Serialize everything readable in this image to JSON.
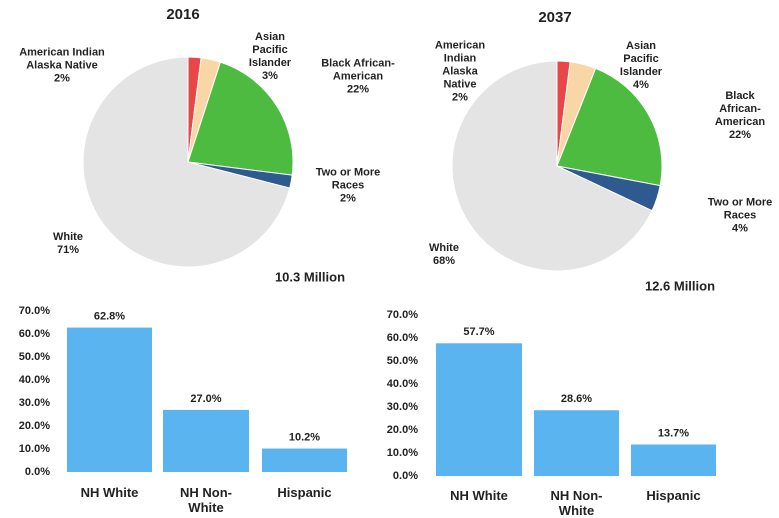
{
  "chart_data": [
    {
      "type": "pie",
      "title": "2016",
      "subtitle": "10.3 Million",
      "categories": [
        "American Indian Alaska Native",
        "Asian Pacific Islander",
        "Black African-American",
        "Two or More Races",
        "White"
      ],
      "values": [
        2,
        3,
        22,
        2,
        71
      ],
      "value_labels": [
        "2%",
        "3%",
        "22%",
        "2%",
        "71%"
      ],
      "colors": [
        "#e8474a",
        "#f9d6a6",
        "#4cbb3f",
        "#2e5a8f",
        "#e4e4e4"
      ]
    },
    {
      "type": "pie",
      "title": "2037",
      "subtitle": "12.6 Million",
      "categories": [
        "American Indian Alaska Native",
        "Asian Pacific Islander",
        "Black African-American",
        "Two or More Races",
        "White"
      ],
      "values": [
        2,
        4,
        22,
        4,
        68
      ],
      "value_labels": [
        "2%",
        "4%",
        "22%",
        "4%",
        "68%"
      ],
      "colors": [
        "#e8474a",
        "#f9d6a6",
        "#4cbb3f",
        "#2e5a8f",
        "#e4e4e4"
      ]
    },
    {
      "type": "bar",
      "categories": [
        "NH White",
        "NH Non-White",
        "Hispanic"
      ],
      "values": [
        62.8,
        27.0,
        10.2
      ],
      "value_labels": [
        "62.8%",
        "27.0%",
        "10.2%"
      ],
      "color": "#5ab4f0",
      "ylim": [
        0,
        70
      ],
      "yticks": [
        {
          "value": 0,
          "label": "0.0%"
        },
        {
          "value": 10,
          "label": "10.0%"
        },
        {
          "value": 20,
          "label": "20.0%"
        },
        {
          "value": 30,
          "label": "30.0%"
        },
        {
          "value": 40,
          "label": "40.0%"
        },
        {
          "value": 50,
          "label": "50.0%"
        },
        {
          "value": 60,
          "label": "60.0%"
        },
        {
          "value": 70,
          "label": "70.0%"
        }
      ]
    },
    {
      "type": "bar",
      "categories": [
        "NH White",
        "NH Non-White",
        "Hispanic"
      ],
      "values": [
        57.7,
        28.6,
        13.7
      ],
      "value_labels": [
        "57.7%",
        "28.6%",
        "13.7%"
      ],
      "color": "#5ab4f0",
      "ylim": [
        0,
        70
      ],
      "yticks": [
        {
          "value": 0,
          "label": "0.0%"
        },
        {
          "value": 10,
          "label": "10.0%"
        },
        {
          "value": 20,
          "label": "20.0%"
        },
        {
          "value": 30,
          "label": "30.0%"
        },
        {
          "value": 40,
          "label": "40.0%"
        },
        {
          "value": 50,
          "label": "50.0%"
        },
        {
          "value": 60,
          "label": "60.0%"
        },
        {
          "value": 70,
          "label": "70.0%"
        }
      ]
    }
  ]
}
